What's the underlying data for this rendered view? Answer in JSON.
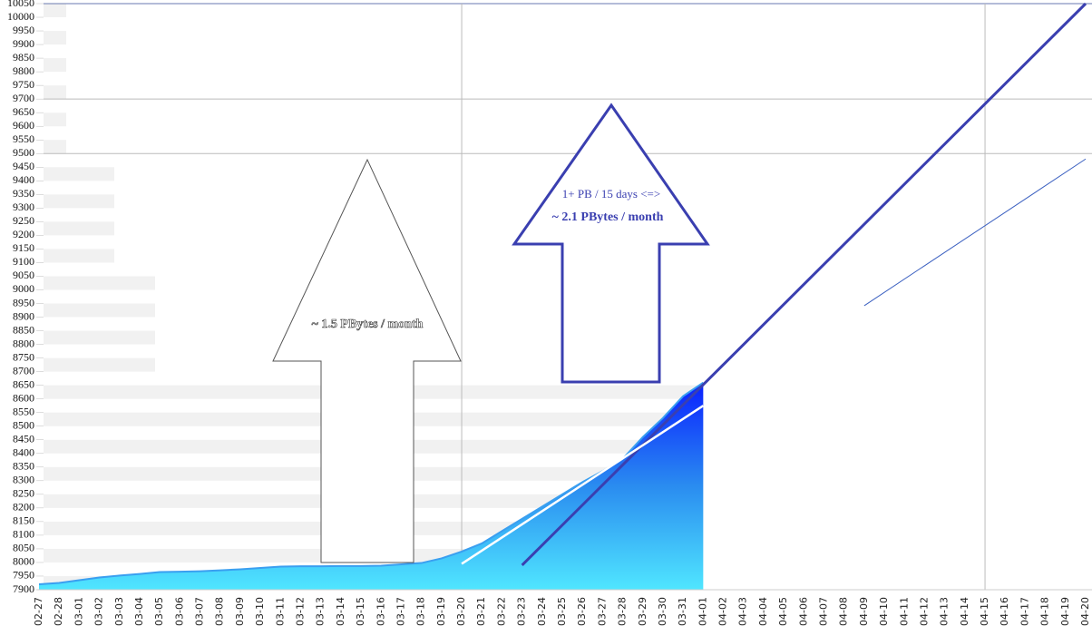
{
  "chart_data": {
    "type": "area",
    "categories": [
      "02-27",
      "02-28",
      "03-01",
      "03-02",
      "03-03",
      "03-04",
      "03-05",
      "03-06",
      "03-07",
      "03-08",
      "03-09",
      "03-10",
      "03-11",
      "03-12",
      "03-13",
      "03-14",
      "03-15",
      "03-16",
      "03-17",
      "03-18",
      "03-19",
      "03-20",
      "03-21",
      "03-22",
      "03-23",
      "03-24",
      "03-25",
      "03-26",
      "03-27",
      "03-28",
      "03-29",
      "03-30",
      "03-31",
      "04-01",
      "04-02",
      "04-03",
      "04-04",
      "04-05",
      "04-06",
      "04-07",
      "04-08",
      "04-09",
      "04-10",
      "04-11",
      "04-12",
      "04-13",
      "04-14",
      "04-15",
      "04-16",
      "04-17",
      "04-18",
      "04-19",
      "04-20"
    ],
    "series": [
      {
        "color": "#1a3cff",
        "values": [
          7920,
          7925,
          7935,
          7945,
          7952,
          7958,
          7965,
          7966,
          7968,
          7971,
          7975,
          7980,
          7985,
          7986,
          7986,
          7987,
          7987,
          7988,
          7993,
          7998,
          8015,
          8040,
          8070,
          8115,
          8160,
          8205,
          8250,
          8295,
          8335,
          8380,
          8460,
          8530,
          8610,
          8660,
          null,
          null,
          null,
          null,
          null,
          null,
          null,
          null,
          null,
          null,
          null,
          null,
          null,
          null,
          null,
          null,
          null,
          null,
          null
        ]
      }
    ],
    "trend_lines": [
      {
        "x": [
          "03-23",
          "04-20"
        ],
        "values": [
          7990,
          10050
        ],
        "color": "#3a3fb0"
      },
      {
        "x": [
          "03-20",
          "04-01"
        ],
        "values": [
          7995,
          8575
        ],
        "color": "#ffffff"
      },
      {
        "x": [
          "04-09",
          "04-20"
        ],
        "values": [
          8942,
          9480
        ],
        "color": "#3a5fc0"
      }
    ],
    "ylim": [
      7900,
      10050
    ],
    "yticks": [
      7900,
      7950,
      8000,
      8050,
      8100,
      8150,
      8200,
      8250,
      8300,
      8350,
      8400,
      8450,
      8500,
      8550,
      8600,
      8650,
      8700,
      8750,
      8800,
      8850,
      8900,
      8950,
      9000,
      9050,
      9100,
      9150,
      9200,
      9250,
      9300,
      9350,
      9400,
      9450,
      9500,
      9550,
      9600,
      9650,
      9700,
      9750,
      9800,
      9850,
      9900,
      9950,
      10000,
      10050
    ],
    "y_grid": [
      9500,
      9700,
      10050
    ],
    "x_grid": [
      "03-20",
      "04-15"
    ],
    "annotations": [
      "~ 1.5 PBytes / month",
      "1+ PB / 15 days <=>",
      "~ 2.1 PBytes / month"
    ]
  }
}
